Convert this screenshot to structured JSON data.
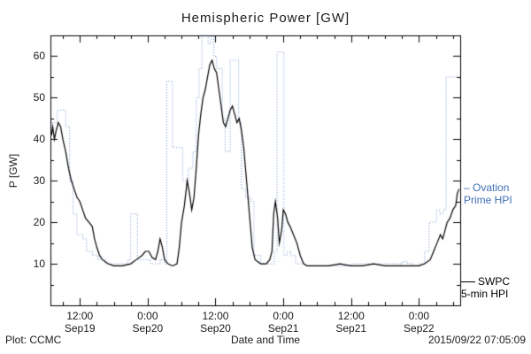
{
  "chart_data": {
    "type": "line",
    "title": "Hemispheric Power [GW]",
    "xlabel": "Date and Time",
    "ylabel": "P [GW]",
    "ylim": [
      0,
      65
    ],
    "xlim_hours": [
      6.8,
      79.3
    ],
    "grid": false,
    "legend_position": "right-outside",
    "yticks": [
      10,
      20,
      30,
      40,
      50,
      60
    ],
    "xticks": [
      {
        "hour": 12,
        "time": "12:00",
        "date": "Sep19"
      },
      {
        "hour": 24,
        "time": "0:00",
        "date": "Sep20"
      },
      {
        "hour": 36,
        "time": "12:00",
        "date": "Sep20"
      },
      {
        "hour": 48,
        "time": "0:00",
        "date": "Sep21"
      },
      {
        "hour": 60,
        "time": "12:00",
        "date": "Sep21"
      },
      {
        "hour": 72,
        "time": "0:00",
        "date": "Sep22"
      }
    ],
    "series": [
      {
        "name": "Ovation Prime HPI",
        "color": "#6f8fc9",
        "style": "dotted-step",
        "points": [
          [
            7.0,
            44
          ],
          [
            8.0,
            47
          ],
          [
            9.5,
            43
          ],
          [
            10.2,
            30
          ],
          [
            10.8,
            22
          ],
          [
            11.5,
            17
          ],
          [
            12.5,
            16
          ],
          [
            13.2,
            13
          ],
          [
            14.2,
            12
          ],
          [
            15.2,
            11
          ],
          [
            16.5,
            10
          ],
          [
            18.0,
            10
          ],
          [
            19.5,
            10
          ],
          [
            20.5,
            11
          ],
          [
            21.0,
            22
          ],
          [
            21.8,
            22
          ],
          [
            22.2,
            11
          ],
          [
            23.5,
            11
          ],
          [
            24.5,
            10
          ],
          [
            25.5,
            10
          ],
          [
            26.2,
            11
          ],
          [
            27.0,
            10
          ],
          [
            27.4,
            54
          ],
          [
            28.1,
            54
          ],
          [
            28.4,
            38
          ],
          [
            29.5,
            38
          ],
          [
            30.2,
            30
          ],
          [
            31.2,
            33
          ],
          [
            32.0,
            37
          ],
          [
            32.6,
            50
          ],
          [
            33.1,
            57
          ],
          [
            33.6,
            65
          ],
          [
            34.3,
            65
          ],
          [
            34.7,
            63
          ],
          [
            35.2,
            65
          ],
          [
            35.7,
            60
          ],
          [
            36.2,
            57
          ],
          [
            36.8,
            57
          ],
          [
            37.2,
            45
          ],
          [
            37.7,
            37
          ],
          [
            38.2,
            37
          ],
          [
            38.6,
            59
          ],
          [
            39.6,
            59
          ],
          [
            40.1,
            44
          ],
          [
            40.6,
            28
          ],
          [
            41.3,
            26
          ],
          [
            42.2,
            25
          ],
          [
            42.8,
            12
          ],
          [
            44.0,
            10
          ],
          [
            45.5,
            10
          ],
          [
            46.4,
            13
          ],
          [
            46.9,
            61
          ],
          [
            47.6,
            61
          ],
          [
            48.1,
            12
          ],
          [
            48.7,
            13
          ],
          [
            49.3,
            12
          ],
          [
            50.2,
            10
          ],
          [
            52.0,
            9.5
          ],
          [
            54.0,
            9.5
          ],
          [
            56.0,
            9.5
          ],
          [
            58.0,
            9.5
          ],
          [
            60.0,
            10
          ],
          [
            62.0,
            10
          ],
          [
            64.0,
            10
          ],
          [
            66.0,
            10
          ],
          [
            68.0,
            10
          ],
          [
            69.0,
            10.5
          ],
          [
            70.0,
            10
          ],
          [
            71.0,
            9.5
          ],
          [
            72.0,
            10
          ],
          [
            73.0,
            13
          ],
          [
            73.8,
            20
          ],
          [
            74.6,
            20
          ],
          [
            75.1,
            23
          ],
          [
            75.7,
            22
          ],
          [
            76.3,
            23
          ],
          [
            76.8,
            55
          ],
          [
            78.0,
            55
          ],
          [
            79.1,
            55
          ]
        ]
      },
      {
        "name": "SWPC 5-min HPI",
        "color": "#000000",
        "style": "solid",
        "points": [
          [
            7.0,
            41
          ],
          [
            7.2,
            43
          ],
          [
            7.5,
            40
          ],
          [
            7.8,
            42
          ],
          [
            8.2,
            44
          ],
          [
            8.6,
            43
          ],
          [
            9.0,
            40
          ],
          [
            9.5,
            37
          ],
          [
            10.0,
            33
          ],
          [
            10.5,
            30
          ],
          [
            11.0,
            28
          ],
          [
            11.5,
            26
          ],
          [
            12.0,
            25
          ],
          [
            12.5,
            23
          ],
          [
            13.0,
            21
          ],
          [
            13.6,
            20
          ],
          [
            14.2,
            19
          ],
          [
            14.6,
            16
          ],
          [
            15.0,
            14
          ],
          [
            15.5,
            12
          ],
          [
            16.0,
            11
          ],
          [
            17.0,
            10
          ],
          [
            18.0,
            9.5
          ],
          [
            19.5,
            9.5
          ],
          [
            21.0,
            10
          ],
          [
            22.0,
            11
          ],
          [
            23.0,
            12
          ],
          [
            23.6,
            13
          ],
          [
            24.2,
            13
          ],
          [
            24.8,
            11.5
          ],
          [
            25.4,
            11
          ],
          [
            25.8,
            13
          ],
          [
            26.2,
            16
          ],
          [
            26.6,
            14
          ],
          [
            27.0,
            11
          ],
          [
            27.6,
            10
          ],
          [
            28.4,
            9.5
          ],
          [
            29.2,
            10
          ],
          [
            29.6,
            14
          ],
          [
            30.0,
            20
          ],
          [
            30.5,
            24
          ],
          [
            31.0,
            30
          ],
          [
            31.4,
            27
          ],
          [
            31.8,
            23
          ],
          [
            32.2,
            26
          ],
          [
            32.6,
            33
          ],
          [
            33.0,
            41
          ],
          [
            33.4,
            46
          ],
          [
            33.8,
            50
          ],
          [
            34.2,
            52
          ],
          [
            34.6,
            55
          ],
          [
            35.0,
            58
          ],
          [
            35.4,
            59
          ],
          [
            35.8,
            57
          ],
          [
            36.2,
            56
          ],
          [
            36.6,
            52
          ],
          [
            37.0,
            48
          ],
          [
            37.4,
            44
          ],
          [
            37.8,
            43
          ],
          [
            38.2,
            45
          ],
          [
            38.6,
            47
          ],
          [
            39.0,
            48
          ],
          [
            39.4,
            46
          ],
          [
            39.8,
            44
          ],
          [
            40.2,
            45
          ],
          [
            40.6,
            42
          ],
          [
            41.0,
            38
          ],
          [
            41.5,
            30
          ],
          [
            42.0,
            22
          ],
          [
            42.5,
            14
          ],
          [
            43.0,
            11
          ],
          [
            44.0,
            10
          ],
          [
            45.0,
            10
          ],
          [
            45.6,
            11
          ],
          [
            46.0,
            13
          ],
          [
            46.3,
            22
          ],
          [
            46.6,
            25
          ],
          [
            47.0,
            21
          ],
          [
            47.3,
            15
          ],
          [
            47.7,
            18
          ],
          [
            48.0,
            23
          ],
          [
            48.4,
            22
          ],
          [
            48.8,
            20
          ],
          [
            49.2,
            19
          ],
          [
            49.8,
            17
          ],
          [
            50.4,
            15
          ],
          [
            51.0,
            12
          ],
          [
            51.6,
            10
          ],
          [
            52.2,
            9.5
          ],
          [
            54.0,
            9.5
          ],
          [
            56.0,
            9.5
          ],
          [
            58.0,
            10
          ],
          [
            60.0,
            9.5
          ],
          [
            62.0,
            9.5
          ],
          [
            64.0,
            10
          ],
          [
            66.0,
            9.5
          ],
          [
            68.0,
            9.5
          ],
          [
            70.0,
            9.5
          ],
          [
            72.0,
            9.5
          ],
          [
            73.0,
            10
          ],
          [
            74.0,
            11
          ],
          [
            74.6,
            13
          ],
          [
            75.2,
            15
          ],
          [
            75.8,
            17
          ],
          [
            76.2,
            16
          ],
          [
            76.6,
            18
          ],
          [
            77.0,
            20
          ],
          [
            77.5,
            21
          ],
          [
            78.0,
            23
          ],
          [
            78.5,
            24
          ],
          [
            78.8,
            27
          ],
          [
            79.1,
            28
          ]
        ]
      }
    ],
    "legend": {
      "ovation": {
        "line1": "– Ovation",
        "line2": "Prime HPI",
        "color": "#3f6fb5"
      },
      "swpc": {
        "line1": "SWPC",
        "line2": "5-min HPI",
        "color": "#000000"
      }
    },
    "footer": {
      "left": "Plot: CCMC",
      "right": "2015/09/22 07:05:09"
    }
  }
}
